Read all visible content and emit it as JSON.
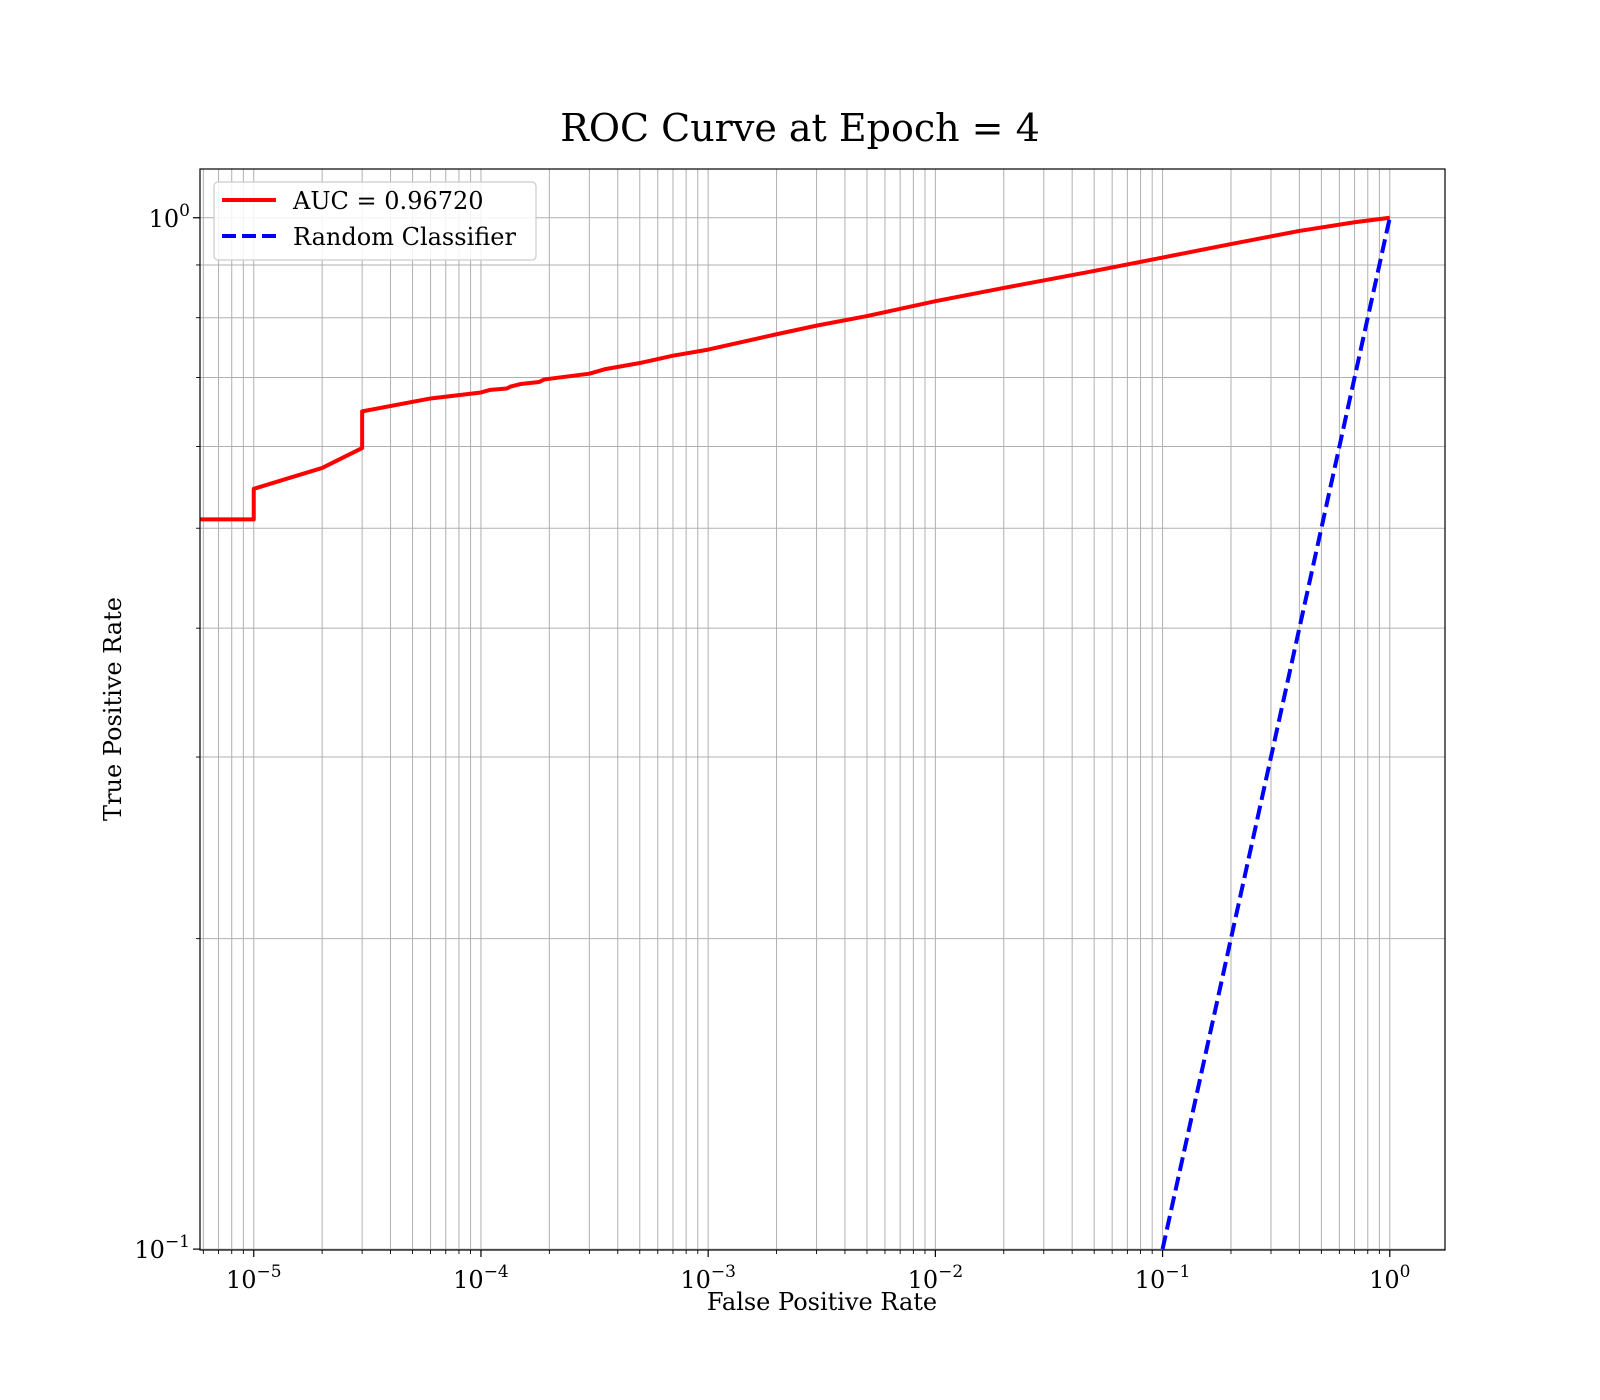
{
  "chart_data": {
    "type": "line",
    "title": "ROC Curve at Epoch = 4",
    "xlabel": "False Positive Rate",
    "ylabel": "True Positive Rate",
    "xscale": "log",
    "yscale": "log",
    "xlim": [
      5.8e-06,
      1.75
    ],
    "ylim": [
      0.0998,
      1.115
    ],
    "grid": true,
    "grid_minor": true,
    "legend_position": "top-left",
    "x_ticks": [
      {
        "value": 1e-05,
        "base": "10",
        "exp": "−5"
      },
      {
        "value": 0.0001,
        "base": "10",
        "exp": "−4"
      },
      {
        "value": 0.001,
        "base": "10",
        "exp": "−3"
      },
      {
        "value": 0.01,
        "base": "10",
        "exp": "−2"
      },
      {
        "value": 0.1,
        "base": "10",
        "exp": "−1"
      },
      {
        "value": 1,
        "base": "10",
        "exp": "0"
      }
    ],
    "y_ticks": [
      {
        "value": 0.1,
        "base": "10",
        "exp": "−1"
      },
      {
        "value": 1,
        "base": "10",
        "exp": "0"
      }
    ],
    "series": [
      {
        "name": "AUC = 0.96720",
        "color": "#ff0000",
        "style": "solid",
        "x": [
          5.8e-06,
          1e-05,
          1e-05,
          2e-05,
          3e-05,
          3e-05,
          6e-05,
          0.0001,
          0.00011,
          0.00013,
          0.000135,
          0.00015,
          0.00018,
          0.00019,
          0.0003,
          0.00035,
          0.0005,
          0.0007,
          0.001,
          0.002,
          0.003,
          0.005,
          0.01,
          0.02,
          0.05,
          0.1,
          0.2,
          0.4,
          0.7,
          1.0
        ],
        "y": [
          0.51,
          0.51,
          0.546,
          0.572,
          0.598,
          0.649,
          0.668,
          0.677,
          0.681,
          0.683,
          0.686,
          0.69,
          0.693,
          0.697,
          0.706,
          0.713,
          0.723,
          0.735,
          0.745,
          0.771,
          0.786,
          0.803,
          0.83,
          0.855,
          0.888,
          0.915,
          0.943,
          0.971,
          0.99,
          1.0
        ]
      },
      {
        "name": "Random Classifier",
        "color": "#0000ff",
        "style": "dashed",
        "x": [
          0.1,
          1.0
        ],
        "y": [
          0.1,
          1.0
        ]
      }
    ]
  }
}
